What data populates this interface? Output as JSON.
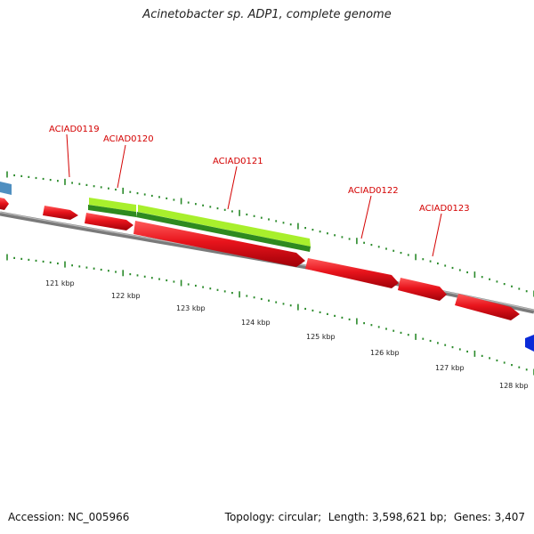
{
  "title": "Acinetobacter sp. ADP1, complete genome",
  "footer": {
    "accession_label": "Accession:",
    "accession_value": "NC_005966",
    "topology_label": "Topology:",
    "topology_value": "circular",
    "length_label": "Length:",
    "length_value": "3,598,621 bp",
    "genes_label": "Genes:",
    "genes_value": "3,407"
  },
  "colors": {
    "gene_reverse": "#e8141c",
    "cds_light": "#a8ef2c",
    "cds_dark": "#2e8a1f",
    "backbone": "#7a7a7a",
    "tick": "#2a8a2a",
    "label": "#d40000",
    "gene_blue_left": "#4f8fc0",
    "gene_blue_right": "#0a2ad8"
  },
  "gene_labels": [
    "ACIAD0119",
    "ACIAD0120",
    "ACIAD0121",
    "ACIAD0122",
    "ACIAD0123"
  ],
  "kbp_labels": [
    "121 kbp",
    "122 kbp",
    "123 kbp",
    "124 kbp",
    "125 kbp",
    "126 kbp",
    "127 kbp",
    "128 kbp"
  ]
}
